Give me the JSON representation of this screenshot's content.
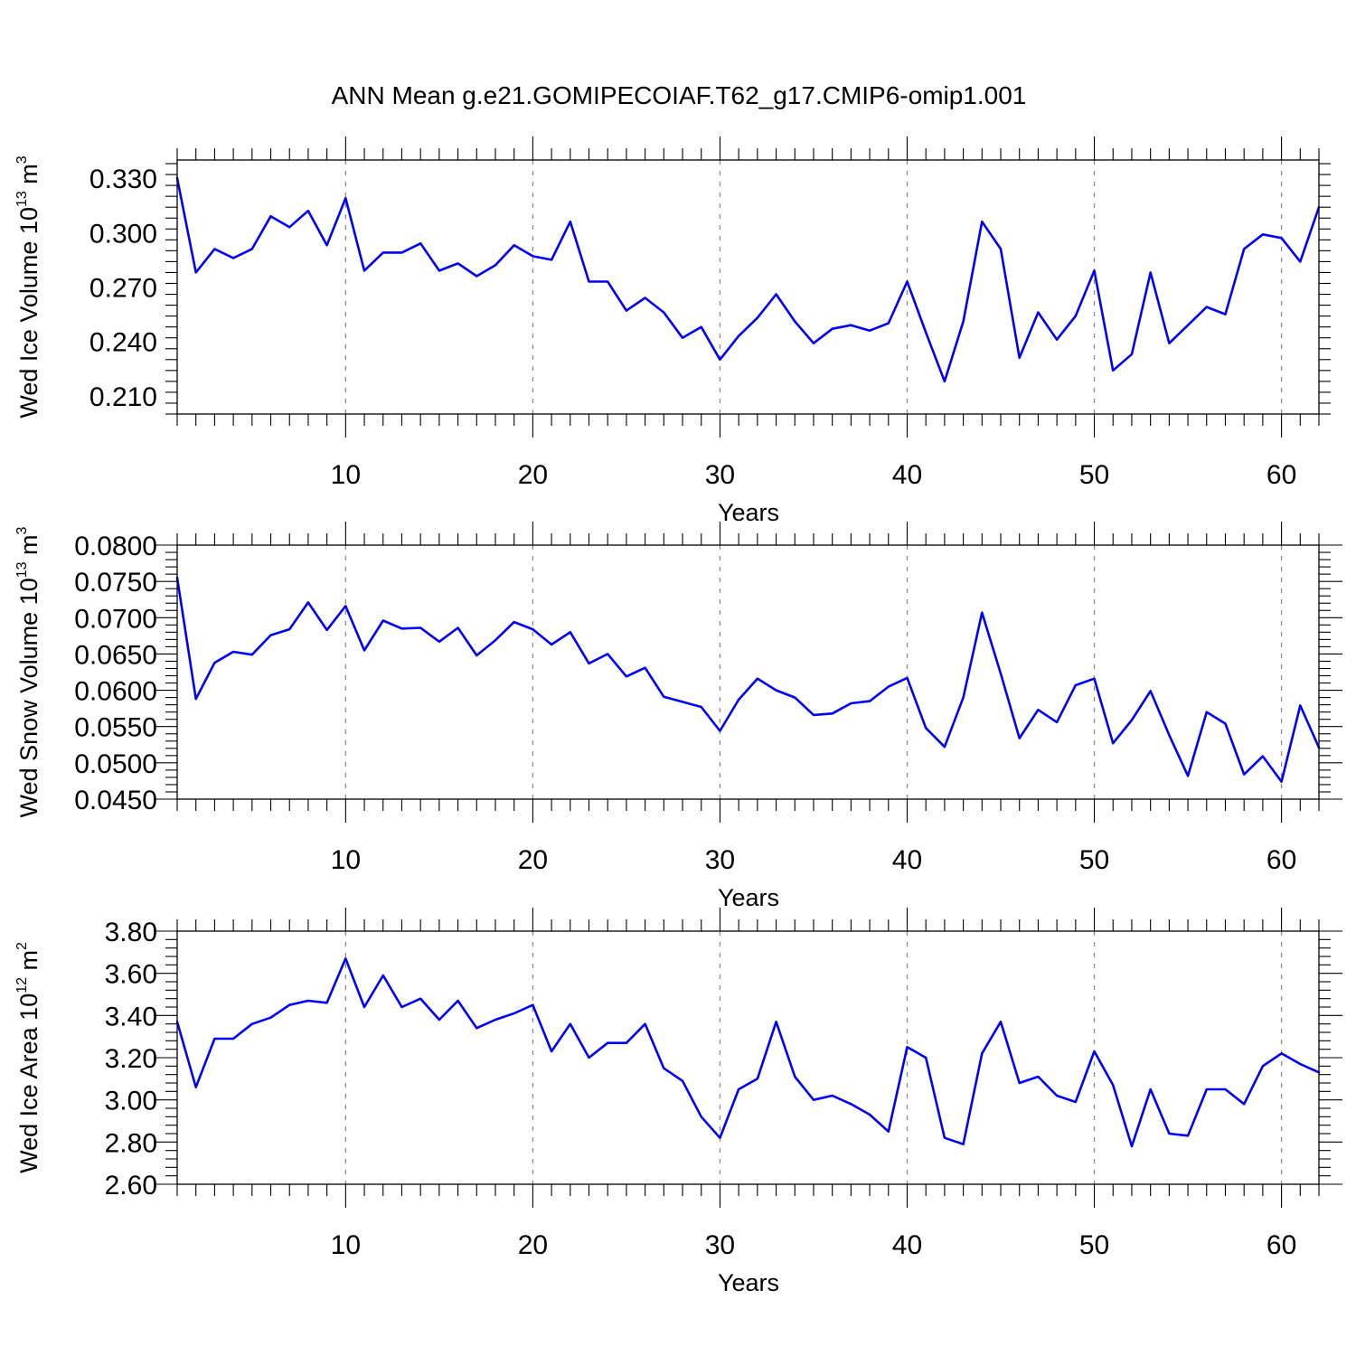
{
  "title": "ANN Mean g.e21.GOMIPECOIAF.T62_g17.CMIP6-omip1.001",
  "colors": {
    "line": "#0000ff",
    "grid": "#8c8c8c",
    "axis": "#000000"
  },
  "chart_data": [
    {
      "type": "line",
      "xlabel": "Years",
      "ylabel": {
        "text": "Wed Ice Volume 10",
        "sup": "13",
        "unit": " m",
        "unit_sup": "3"
      },
      "xlim": [
        1,
        62
      ],
      "ylim": [
        0.2,
        0.34
      ],
      "xticks": [
        10,
        20,
        30,
        40,
        50,
        60
      ],
      "yticks": [
        0.21,
        0.24,
        0.27,
        0.3,
        0.33
      ],
      "ytick_labels": [
        "0.210",
        "0.240",
        "0.270",
        "0.300",
        "0.330"
      ],
      "grid": "x-dashed",
      "series": [
        {
          "x": [
            1,
            2,
            3,
            4,
            5,
            6,
            7,
            8,
            9,
            10,
            11,
            12,
            13,
            14,
            15,
            16,
            17,
            18,
            19,
            20,
            21,
            22,
            23,
            24,
            25,
            26,
            27,
            28,
            29,
            30,
            31,
            32,
            33,
            34,
            35,
            36,
            37,
            38,
            39,
            40,
            41,
            42,
            43,
            44,
            45,
            46,
            47,
            48,
            49,
            50,
            51,
            52,
            53,
            54,
            55,
            56,
            57,
            58,
            59,
            60,
            61,
            62
          ],
          "values": [
            0.33,
            0.278,
            0.291,
            0.286,
            0.291,
            0.309,
            0.303,
            0.312,
            0.293,
            0.319,
            0.279,
            0.289,
            0.289,
            0.294,
            0.279,
            0.283,
            0.276,
            0.282,
            0.293,
            0.287,
            0.285,
            0.306,
            0.273,
            0.273,
            0.257,
            0.264,
            0.256,
            0.242,
            0.248,
            0.23,
            0.243,
            0.253,
            0.266,
            0.251,
            0.239,
            0.247,
            0.249,
            0.246,
            0.25,
            0.273,
            0.245,
            0.218,
            0.251,
            0.306,
            0.291,
            0.231,
            0.256,
            0.241,
            0.254,
            0.279,
            0.224,
            0.233,
            0.278,
            0.239,
            0.249,
            0.259,
            0.255,
            0.291,
            0.299,
            0.297,
            0.284,
            0.314
          ]
        }
      ]
    },
    {
      "type": "line",
      "xlabel": "Years",
      "ylabel": {
        "text": "Wed Snow Volume 10",
        "sup": "13",
        "unit": " m",
        "unit_sup": "3"
      },
      "xlim": [
        1,
        62
      ],
      "ylim": [
        0.045,
        0.08
      ],
      "xticks": [
        10,
        20,
        30,
        40,
        50,
        60
      ],
      "yticks": [
        0.045,
        0.05,
        0.055,
        0.06,
        0.065,
        0.07,
        0.075,
        0.08
      ],
      "ytick_labels": [
        "0.0450",
        "0.0500",
        "0.0550",
        "0.0600",
        "0.0650",
        "0.0700",
        "0.0750",
        "0.0800"
      ],
      "grid": "x-dashed",
      "series": [
        {
          "x": [
            1,
            2,
            3,
            4,
            5,
            6,
            7,
            8,
            9,
            10,
            11,
            12,
            13,
            14,
            15,
            16,
            17,
            18,
            19,
            20,
            21,
            22,
            23,
            24,
            25,
            26,
            27,
            28,
            29,
            30,
            31,
            32,
            33,
            34,
            35,
            36,
            37,
            38,
            39,
            40,
            41,
            42,
            43,
            44,
            45,
            46,
            47,
            48,
            49,
            50,
            51,
            52,
            53,
            54,
            55,
            56,
            57,
            58,
            59,
            60,
            61,
            62
          ],
          "values": [
            0.0755,
            0.0588,
            0.0638,
            0.0653,
            0.0649,
            0.0676,
            0.0684,
            0.0721,
            0.0683,
            0.0716,
            0.0655,
            0.0696,
            0.0685,
            0.0686,
            0.0667,
            0.0686,
            0.0648,
            0.0669,
            0.0694,
            0.0684,
            0.0663,
            0.068,
            0.0637,
            0.065,
            0.0619,
            0.0631,
            0.0591,
            0.0584,
            0.0577,
            0.0544,
            0.0587,
            0.0616,
            0.06,
            0.059,
            0.0566,
            0.0568,
            0.0582,
            0.0585,
            0.0605,
            0.0617,
            0.0548,
            0.0522,
            0.059,
            0.0707,
            0.0623,
            0.0534,
            0.0573,
            0.0556,
            0.0607,
            0.0616,
            0.0527,
            0.0559,
            0.0599,
            0.0538,
            0.0482,
            0.057,
            0.0554,
            0.0484,
            0.0509,
            0.0474,
            0.0579,
            0.0521
          ]
        }
      ]
    },
    {
      "type": "line",
      "xlabel": "Years",
      "ylabel": {
        "text": "Wed Ice Area 10",
        "sup": "12",
        "unit": " m",
        "unit_sup": "2"
      },
      "xlim": [
        1,
        62
      ],
      "ylim": [
        2.6,
        3.8
      ],
      "xticks": [
        10,
        20,
        30,
        40,
        50,
        60
      ],
      "yticks": [
        2.6,
        2.8,
        3.0,
        3.2,
        3.4,
        3.6,
        3.8
      ],
      "ytick_labels": [
        "2.60",
        "2.80",
        "3.00",
        "3.20",
        "3.40",
        "3.60",
        "3.80"
      ],
      "grid": "x-dashed",
      "series": [
        {
          "x": [
            1,
            2,
            3,
            4,
            5,
            6,
            7,
            8,
            9,
            10,
            11,
            12,
            13,
            14,
            15,
            16,
            17,
            18,
            19,
            20,
            21,
            22,
            23,
            24,
            25,
            26,
            27,
            28,
            29,
            30,
            31,
            32,
            33,
            34,
            35,
            36,
            37,
            38,
            39,
            40,
            41,
            42,
            43,
            44,
            45,
            46,
            47,
            48,
            49,
            50,
            51,
            52,
            53,
            54,
            55,
            56,
            57,
            58,
            59,
            60,
            61,
            62
          ],
          "values": [
            3.37,
            3.06,
            3.29,
            3.29,
            3.36,
            3.39,
            3.45,
            3.47,
            3.46,
            3.67,
            3.44,
            3.59,
            3.44,
            3.48,
            3.38,
            3.47,
            3.34,
            3.38,
            3.41,
            3.45,
            3.23,
            3.36,
            3.2,
            3.27,
            3.27,
            3.36,
            3.15,
            3.09,
            2.92,
            2.82,
            3.05,
            3.1,
            3.37,
            3.11,
            3.0,
            3.02,
            2.98,
            2.93,
            2.85,
            3.25,
            3.2,
            2.82,
            2.79,
            3.22,
            3.37,
            3.08,
            3.11,
            3.02,
            2.99,
            3.23,
            3.07,
            2.78,
            3.05,
            2.84,
            2.83,
            3.05,
            3.05,
            2.98,
            3.16,
            3.22,
            3.17,
            3.13
          ]
        }
      ]
    }
  ]
}
